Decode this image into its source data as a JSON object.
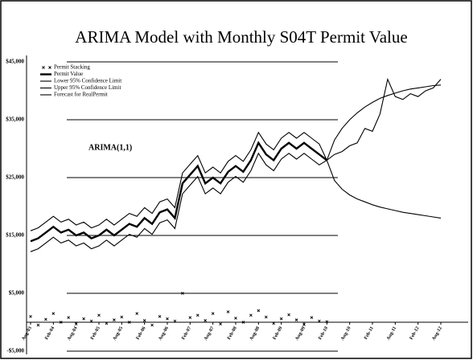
{
  "chart_data": {
    "type": "line",
    "title": "ARIMA Model with Monthly S04T Permit Value",
    "annotation": "ARIMA(1,1)",
    "categories": [
      "Aug-03",
      null,
      null,
      "Feb-04",
      null,
      null,
      "Aug-04",
      null,
      null,
      "Feb-05",
      null,
      null,
      "Aug-05",
      null,
      null,
      "Feb-06",
      null,
      null,
      "Aug-06",
      null,
      null,
      "Feb-07",
      null,
      null,
      "Aug-07",
      null,
      null,
      "Feb-08",
      null,
      null,
      "Aug-08",
      null,
      null,
      "Feb-09",
      null,
      null,
      "Aug-09",
      null,
      null,
      "Feb-10",
      null,
      null,
      "Aug-10",
      null,
      null,
      "Feb-11",
      null,
      null,
      "Aug-11",
      null,
      null,
      "Feb-12",
      null,
      null,
      "Aug-12"
    ],
    "series": [
      {
        "name": "Permit Stacking",
        "kind": "scatter",
        "color": "#000000",
        "values": [
          1000,
          -500,
          500,
          1500,
          0,
          800,
          -300,
          600,
          200,
          1200,
          -200,
          400,
          900,
          0,
          1500,
          300,
          -500,
          1000,
          600,
          200,
          5000,
          800,
          1200,
          300,
          1500,
          -300,
          1800,
          700,
          0,
          1200,
          2000,
          900,
          -200,
          600,
          1300,
          400,
          -400,
          800,
          200,
          100,
          null,
          null,
          null,
          null,
          null,
          null,
          null,
          null,
          null,
          null,
          null,
          null,
          null,
          null,
          null
        ]
      },
      {
        "name": "Permit Value",
        "kind": "line",
        "color": "#000000",
        "values": [
          14000,
          14500,
          15500,
          16500,
          15500,
          16000,
          15000,
          15500,
          14500,
          15000,
          16000,
          15000,
          16000,
          17000,
          16500,
          18000,
          17000,
          19000,
          19500,
          18000,
          24000,
          25500,
          27000,
          24000,
          25000,
          24000,
          26000,
          27000,
          26000,
          28000,
          31000,
          29000,
          28000,
          30000,
          31000,
          30000,
          31000,
          30000,
          29000,
          28000,
          null,
          null,
          null,
          null,
          null,
          null,
          null,
          null,
          null,
          null,
          null,
          null,
          null,
          null,
          null
        ]
      },
      {
        "name": "Lower 95% Confidence Limit",
        "kind": "line",
        "color": "#000000",
        "values": [
          12200,
          12700,
          13700,
          14700,
          13700,
          14200,
          13200,
          13700,
          12700,
          13200,
          14200,
          13200,
          14200,
          15200,
          14700,
          16200,
          15200,
          17200,
          17700,
          16200,
          22200,
          23700,
          25200,
          22200,
          23200,
          22200,
          24200,
          25200,
          24200,
          26200,
          29200,
          27200,
          26200,
          28200,
          29200,
          28200,
          29200,
          28200,
          27200,
          28000,
          24500,
          23000,
          22000,
          21300,
          20800,
          20300,
          19900,
          19600,
          19300,
          19000,
          18800,
          18600,
          18400,
          18200,
          18000
        ]
      },
      {
        "name": "Upper 95% Confidence Limit",
        "kind": "line",
        "color": "#000000",
        "values": [
          15800,
          16300,
          17300,
          18300,
          17300,
          17800,
          16800,
          17300,
          16300,
          16800,
          17800,
          16800,
          17800,
          18800,
          18300,
          19800,
          18800,
          20800,
          21300,
          19800,
          25800,
          27300,
          28800,
          25800,
          26800,
          25800,
          27800,
          28800,
          27800,
          29800,
          32800,
          30800,
          29800,
          31800,
          32800,
          31800,
          32800,
          31800,
          30800,
          28000,
          31500,
          33500,
          35000,
          36200,
          37200,
          38000,
          38700,
          39200,
          39600,
          40000,
          40300,
          40500,
          40700,
          40900,
          41000
        ]
      },
      {
        "name": "Forecast for RealPermit",
        "kind": "line",
        "color": "#000000",
        "values": [
          null,
          null,
          null,
          null,
          null,
          null,
          null,
          null,
          null,
          null,
          null,
          null,
          null,
          null,
          null,
          null,
          null,
          null,
          null,
          null,
          null,
          null,
          null,
          null,
          null,
          null,
          null,
          null,
          null,
          null,
          null,
          null,
          null,
          null,
          null,
          null,
          null,
          null,
          null,
          28000,
          29000,
          29500,
          30500,
          31000,
          33500,
          33000,
          36000,
          42000,
          39000,
          38500,
          39500,
          39000,
          40000,
          40500,
          42000
        ]
      }
    ],
    "ylim": [
      -5000,
      45000
    ],
    "yticks": [
      {
        "value": 45000,
        "label": "$45,000"
      },
      {
        "value": 35000,
        "label": "$35,000"
      },
      {
        "value": 25000,
        "label": "$25,000"
      },
      {
        "value": 15000,
        "label": "$15,000"
      },
      {
        "value": 5000,
        "label": "$5,000"
      },
      {
        "value": -5000,
        "label": "-$5,000"
      }
    ],
    "grid": true
  }
}
